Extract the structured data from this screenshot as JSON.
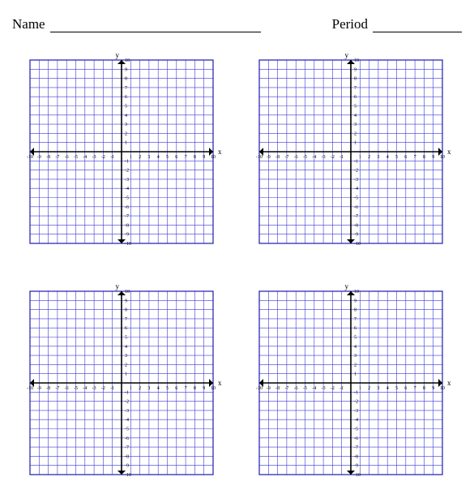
{
  "header": {
    "name_label": "Name",
    "period_label": "Period"
  },
  "grid": {
    "count": 4,
    "type": "cartesian",
    "x_min": -10,
    "x_max": 10,
    "y_min": -10,
    "y_max": 10,
    "tick_step": 1,
    "x_ticks": [
      -10,
      -9,
      -8,
      -7,
      -6,
      -5,
      -4,
      -3,
      -2,
      -1,
      1,
      2,
      3,
      4,
      5,
      6,
      7,
      8,
      9,
      10
    ],
    "y_ticks": [
      -10,
      -9,
      -8,
      -7,
      -6,
      -5,
      -4,
      -3,
      -2,
      -1,
      1,
      2,
      3,
      4,
      5,
      6,
      7,
      8,
      9,
      10
    ],
    "x_label": "x",
    "y_label": "y",
    "grid_line_color": "#3b3bd4",
    "grid_line_width": 0.6,
    "grid_outer_border_color": "#1a1ab0",
    "grid_outer_border_width": 1.2,
    "axis_color": "#000000",
    "axis_width": 1.6,
    "tick_font_size": 6,
    "tick_color": "#000000",
    "axis_label_font_size": 9,
    "background_color": "#ffffff",
    "svg_size": 250,
    "plot_margin": 12,
    "arrow_size": 5
  }
}
